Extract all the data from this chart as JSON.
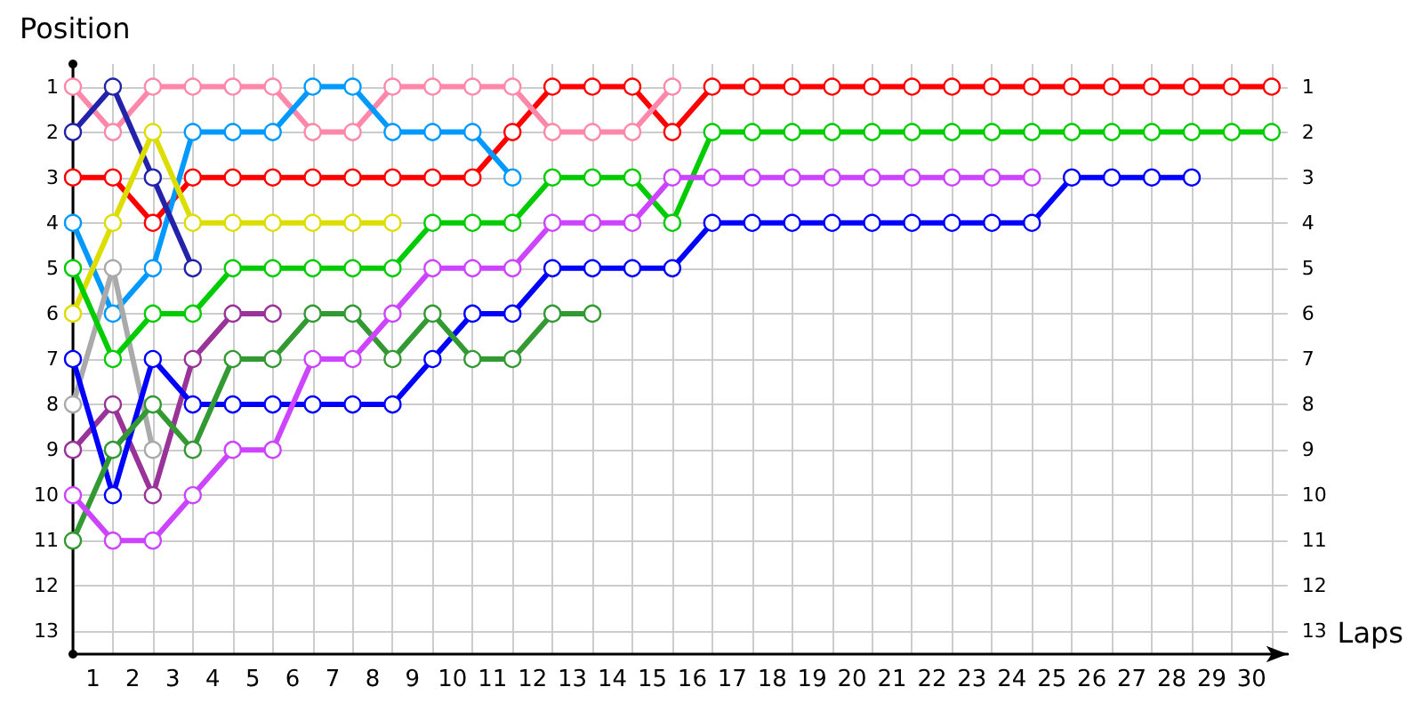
{
  "chart_data": {
    "type": "line",
    "xlabel": "Laps",
    "ylabel": "Position",
    "grid": true,
    "marker": "circle",
    "line_style": "solid",
    "x": [
      0,
      1,
      2,
      3,
      4,
      5,
      6,
      7,
      8,
      9,
      10,
      11,
      12,
      13,
      14,
      15,
      16,
      17,
      18,
      19,
      20,
      21,
      22,
      23,
      24,
      25,
      26,
      27,
      28,
      29,
      30
    ],
    "xlim": [
      0,
      30.4
    ],
    "xticks": [
      {
        "value": 0,
        "label": null
      },
      {
        "value": 0.5,
        "label": "1"
      },
      {
        "value": 1,
        "label": null
      },
      {
        "value": 1.5,
        "label": "2"
      },
      {
        "value": 2,
        "label": null
      },
      {
        "value": 2.5,
        "label": "3"
      },
      {
        "value": 3,
        "label": null
      },
      {
        "value": 3.5,
        "label": "4"
      },
      {
        "value": 4,
        "label": null
      },
      {
        "value": 4.5,
        "label": "5"
      },
      {
        "value": 5,
        "label": null
      },
      {
        "value": 5.5,
        "label": "6"
      },
      {
        "value": 6,
        "label": null
      },
      {
        "value": 6.5,
        "label": "7"
      },
      {
        "value": 7,
        "label": null
      },
      {
        "value": 7.5,
        "label": "8"
      },
      {
        "value": 8,
        "label": null
      },
      {
        "value": 8.5,
        "label": "9"
      },
      {
        "value": 9,
        "label": null
      },
      {
        "value": 9.5,
        "label": "10"
      },
      {
        "value": 10,
        "label": null
      },
      {
        "value": 10.5,
        "label": "11"
      },
      {
        "value": 11,
        "label": null
      },
      {
        "value": 11.5,
        "label": "12"
      },
      {
        "value": 12,
        "label": null
      },
      {
        "value": 12.5,
        "label": "13"
      },
      {
        "value": 13,
        "label": null
      },
      {
        "value": 13.5,
        "label": "14"
      },
      {
        "value": 14,
        "label": null
      },
      {
        "value": 14.5,
        "label": "15"
      },
      {
        "value": 15,
        "label": null
      },
      {
        "value": 15.5,
        "label": "16"
      },
      {
        "value": 16,
        "label": null
      },
      {
        "value": 16.5,
        "label": "17"
      },
      {
        "value": 17,
        "label": null
      },
      {
        "value": 17.5,
        "label": "18"
      },
      {
        "value": 18,
        "label": null
      },
      {
        "value": 18.5,
        "label": "19"
      },
      {
        "value": 19,
        "label": null
      },
      {
        "value": 19.5,
        "label": "20"
      },
      {
        "value": 20,
        "label": null
      },
      {
        "value": 20.5,
        "label": "21"
      },
      {
        "value": 21,
        "label": null
      },
      {
        "value": 21.5,
        "label": "22"
      },
      {
        "value": 22,
        "label": null
      },
      {
        "value": 22.5,
        "label": "23"
      },
      {
        "value": 23,
        "label": null
      },
      {
        "value": 23.5,
        "label": "24"
      },
      {
        "value": 24,
        "label": null
      },
      {
        "value": 24.5,
        "label": "25"
      },
      {
        "value": 25,
        "label": null
      },
      {
        "value": 25.5,
        "label": "26"
      },
      {
        "value": 26,
        "label": null
      },
      {
        "value": 26.5,
        "label": "27"
      },
      {
        "value": 27,
        "label": null
      },
      {
        "value": 27.5,
        "label": "28"
      },
      {
        "value": 28,
        "label": null
      },
      {
        "value": 28.5,
        "label": "29"
      },
      {
        "value": 29,
        "label": null
      },
      {
        "value": 29.5,
        "label": "30"
      },
      {
        "value": 30,
        "label": null
      }
    ],
    "ylim": [
      13.5,
      0.5
    ],
    "yticks": [
      1,
      2,
      3,
      4,
      5,
      6,
      7,
      8,
      9,
      10,
      11,
      12,
      13
    ],
    "y2lim": [
      13.5,
      0.5
    ],
    "y2ticks": [
      1,
      2,
      3,
      4,
      5,
      6,
      7,
      8,
      9,
      10,
      11,
      12,
      13
    ],
    "series": [
      {
        "color": "#ff0000",
        "values": [
          3,
          3,
          4,
          3,
          3,
          3,
          3,
          3,
          3,
          3,
          3,
          2,
          1,
          1,
          1,
          2,
          1,
          1,
          1,
          1,
          1,
          1,
          1,
          1,
          1,
          1,
          1,
          1,
          1,
          1,
          1
        ]
      },
      {
        "color": "#ff88aa",
        "values": [
          1,
          2,
          1,
          1,
          1,
          1,
          2,
          2,
          1,
          1,
          1,
          1,
          2,
          2,
          2,
          1,
          null,
          null,
          null,
          null,
          null,
          null,
          null,
          null,
          null,
          null,
          null,
          null,
          null,
          null,
          null
        ]
      },
      {
        "color": "#0099ff",
        "values": [
          4,
          6,
          5,
          2,
          2,
          2,
          1,
          1,
          2,
          2,
          2,
          3,
          null,
          null,
          null,
          null,
          null,
          null,
          null,
          null,
          null,
          null,
          null,
          null,
          null,
          null,
          null,
          null,
          null,
          null,
          null
        ]
      },
      {
        "color": "#2222aa",
        "values": [
          2,
          1,
          3,
          5,
          null,
          null,
          null,
          null,
          null,
          null,
          null,
          null,
          null,
          null,
          null,
          null,
          null,
          null,
          null,
          null,
          null,
          null,
          null,
          null,
          null,
          null,
          null,
          null,
          null,
          null,
          null
        ]
      },
      {
        "color": "#dddd00",
        "values": [
          6,
          4,
          2,
          4,
          4,
          4,
          4,
          4,
          4,
          null,
          null,
          null,
          null,
          null,
          null,
          null,
          null,
          null,
          null,
          null,
          null,
          null,
          null,
          null,
          null,
          null,
          null,
          null,
          null,
          null,
          null
        ]
      },
      {
        "color": "#aaaaaa",
        "values": [
          8,
          5,
          9,
          null,
          null,
          null,
          null,
          null,
          null,
          null,
          null,
          null,
          null,
          null,
          null,
          null,
          null,
          null,
          null,
          null,
          null,
          null,
          null,
          null,
          null,
          null,
          null,
          null,
          null,
          null,
          null
        ]
      },
      {
        "color": "#00cc00",
        "values": [
          5,
          7,
          6,
          6,
          5,
          5,
          5,
          5,
          5,
          4,
          4,
          4,
          3,
          3,
          3,
          4,
          2,
          2,
          2,
          2,
          2,
          2,
          2,
          2,
          2,
          2,
          2,
          2,
          2,
          2,
          2
        ]
      },
      {
        "color": "#993399",
        "values": [
          9,
          8,
          10,
          7,
          6,
          6,
          null,
          null,
          null,
          null,
          null,
          null,
          null,
          null,
          null,
          null,
          null,
          null,
          null,
          null,
          null,
          null,
          null,
          null,
          null,
          null,
          null,
          null,
          null,
          null,
          null
        ]
      },
      {
        "color": "#0000ff",
        "values": [
          7,
          10,
          7,
          8,
          8,
          8,
          8,
          8,
          8,
          7,
          6,
          6,
          5,
          5,
          5,
          5,
          4,
          4,
          4,
          4,
          4,
          4,
          4,
          4,
          4,
          3,
          3,
          3,
          3,
          null,
          null
        ]
      },
      {
        "color": "#339933",
        "values": [
          11,
          9,
          8,
          9,
          7,
          7,
          6,
          6,
          7,
          6,
          7,
          7,
          6,
          6,
          null,
          null,
          null,
          null,
          null,
          null,
          null,
          null,
          null,
          null,
          null,
          null,
          null,
          null,
          null,
          null,
          null
        ]
      },
      {
        "color": "#cc44ff",
        "values": [
          10,
          11,
          11,
          10,
          9,
          9,
          7,
          7,
          6,
          5,
          5,
          5,
          4,
          4,
          4,
          3,
          3,
          3,
          3,
          3,
          3,
          3,
          3,
          3,
          3,
          null,
          null,
          null,
          null,
          null,
          null
        ]
      }
    ]
  }
}
